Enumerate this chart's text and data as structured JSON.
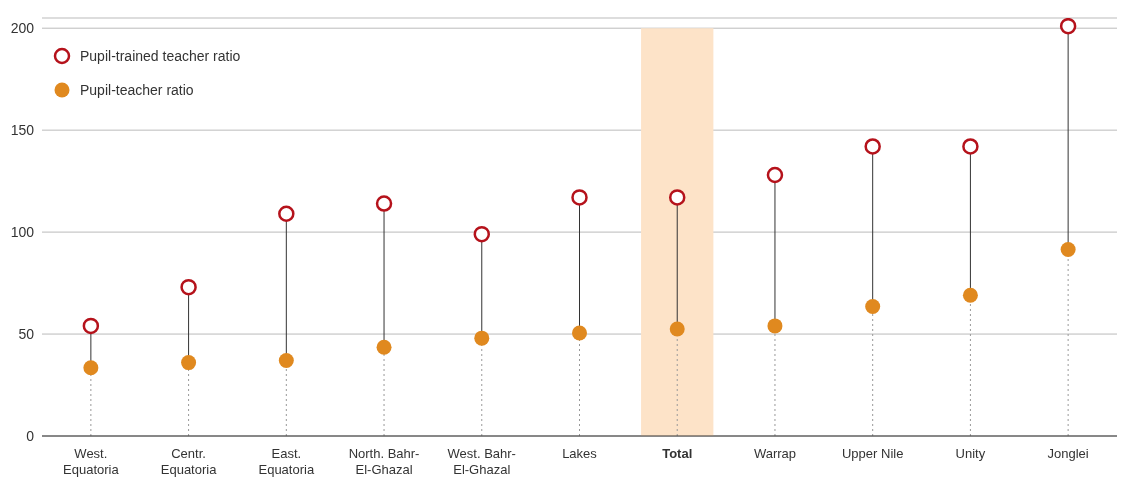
{
  "chart_data": {
    "type": "lollipop",
    "categories": [
      "West. Equatoria",
      "Centr. Equatoria",
      "East. Equatoria",
      "North. Bahr-El-Ghazal",
      "West. Bahr-El-Ghazal",
      "Lakes",
      "Total",
      "Warrap",
      "Upper Nile",
      "Unity",
      "Jonglei"
    ],
    "series": [
      {
        "name": "Pupil-trained teacher ratio",
        "color": "#b5121b",
        "values": [
          54,
          73,
          109,
          114,
          99,
          117,
          117,
          128,
          142,
          142,
          201
        ]
      },
      {
        "name": "Pupil-teacher ratio",
        "color": "#e0891f",
        "values": [
          33.5,
          36,
          37,
          43.5,
          48,
          50.5,
          52.5,
          54,
          63.5,
          69,
          91.5
        ]
      }
    ],
    "ylim": [
      0,
      205
    ],
    "yticks": [
      0,
      50,
      100,
      150,
      200
    ],
    "grid": "y",
    "legend": "top left",
    "marker": "circle",
    "bands": [
      {
        "axis": "x",
        "from": "Total",
        "to": "Total",
        "color": "#fde3c8"
      }
    ]
  }
}
